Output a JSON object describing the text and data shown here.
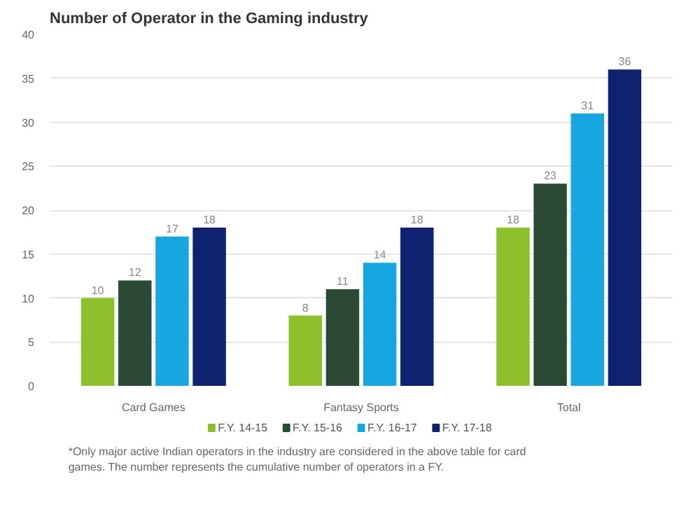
{
  "chart_data": {
    "type": "bar",
    "title": "Number of Operator in the Gaming industry",
    "categories": [
      "Card Games",
      "Fantasy Sports",
      "Total"
    ],
    "series": [
      {
        "name": "F.Y. 14-15",
        "color": "#8cbf2a",
        "values": [
          10,
          8,
          18
        ]
      },
      {
        "name": "F.Y. 15-16",
        "color": "#2b4a35",
        "values": [
          12,
          11,
          23
        ]
      },
      {
        "name": "F.Y. 16-17",
        "color": "#16a6e0",
        "values": [
          17,
          14,
          31
        ]
      },
      {
        "name": "F.Y. 17-18",
        "color": "#0f2270",
        "values": [
          18,
          18,
          36
        ]
      }
    ],
    "ylim": [
      0,
      40
    ],
    "yticks": [
      0,
      5,
      10,
      15,
      20,
      25,
      30,
      35,
      40
    ],
    "grid": "y",
    "legend": "bottom",
    "data_labels": true,
    "annotations": [
      "*Only major active Indian operators in the industry are considered in the above table for card games. The number represents the cumulative number of operators in a FY."
    ]
  }
}
